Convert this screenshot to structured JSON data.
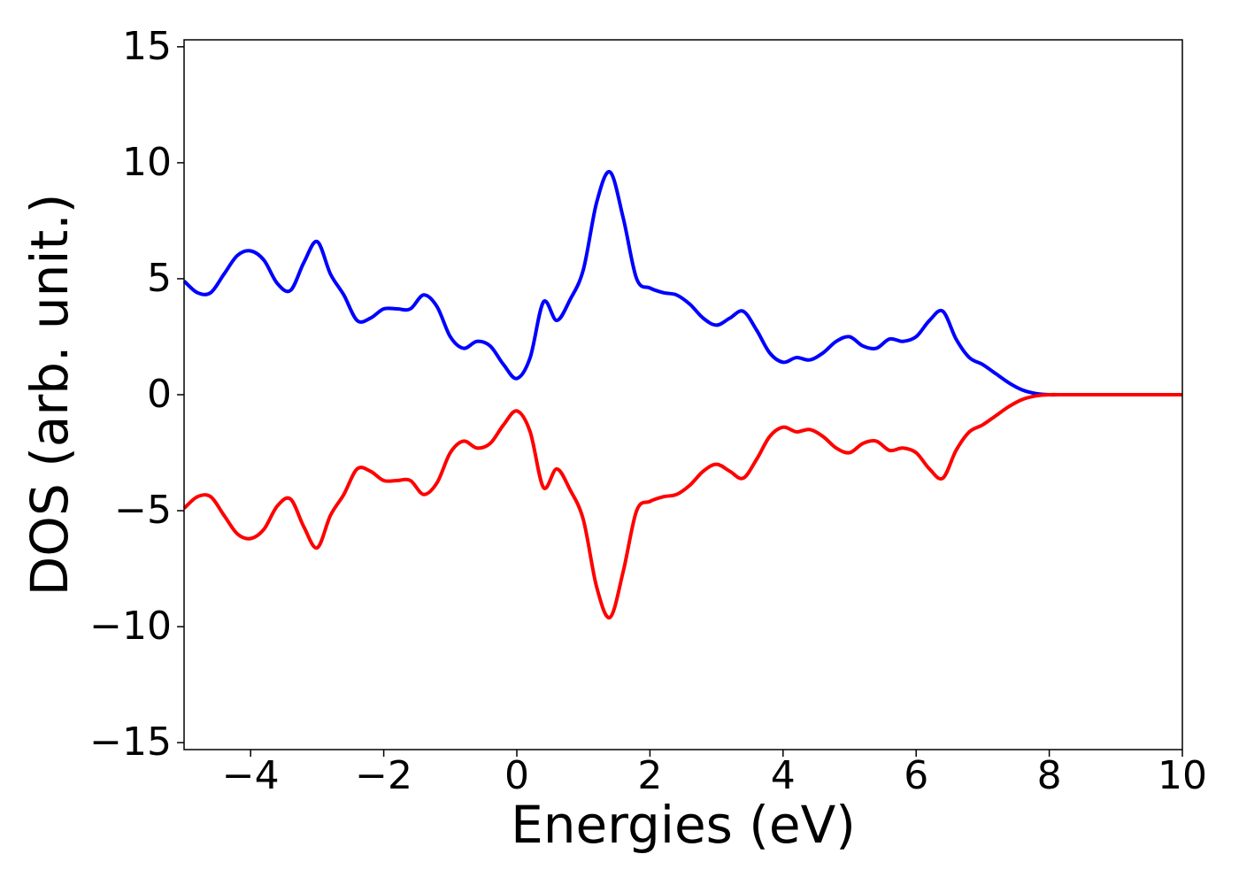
{
  "chart_data": {
    "type": "line",
    "x_label": "Energies (eV)",
    "y_label": "DOS (arb. unit.)",
    "x": [
      -5,
      -4.8,
      -4.6,
      -4.4,
      -4.2,
      -4,
      -3.8,
      -3.6,
      -3.4,
      -3.2,
      -3,
      -2.8,
      -2.6,
      -2.4,
      -2.2,
      -2,
      -1.8,
      -1.6,
      -1.4,
      -1.2,
      -1,
      -0.8,
      -0.6,
      -0.4,
      -0.2,
      0,
      0.2,
      0.4,
      0.6,
      0.8,
      1,
      1.2,
      1.4,
      1.6,
      1.8,
      2,
      2.2,
      2.4,
      2.6,
      2.8,
      3,
      3.2,
      3.4,
      3.6,
      3.8,
      4,
      4.2,
      4.4,
      4.6,
      4.8,
      5,
      5.2,
      5.4,
      5.6,
      5.8,
      6,
      6.2,
      6.4,
      6.6,
      6.8,
      7,
      7.2,
      7.4,
      7.6,
      7.8,
      8,
      8.2,
      8.4,
      8.6,
      8.8,
      9,
      9.2,
      9.4,
      9.6,
      9.8,
      10
    ],
    "series": [
      {
        "color": "#0000ff",
        "values": [
          4.9,
          4.4,
          4.4,
          5.2,
          6.0,
          6.2,
          5.8,
          4.8,
          4.5,
          5.7,
          6.6,
          5.2,
          4.3,
          3.2,
          3.3,
          3.7,
          3.7,
          3.7,
          4.3,
          3.8,
          2.5,
          2.0,
          2.3,
          2.1,
          1.3,
          0.7,
          1.6,
          4.0,
          3.2,
          4.1,
          5.4,
          8.3,
          9.6,
          7.6,
          5.0,
          4.6,
          4.4,
          4.3,
          3.9,
          3.3,
          3.0,
          3.3,
          3.6,
          2.8,
          1.8,
          1.4,
          1.6,
          1.5,
          1.8,
          2.3,
          2.5,
          2.1,
          2.0,
          2.4,
          2.3,
          2.5,
          3.2,
          3.6,
          2.4,
          1.6,
          1.3,
          0.9,
          0.5,
          0.2,
          0.05,
          0,
          0,
          0,
          0,
          0,
          0,
          0,
          0,
          0,
          0,
          0
        ]
      },
      {
        "color": "#ff0000",
        "values": [
          -4.9,
          -4.4,
          -4.4,
          -5.2,
          -6.0,
          -6.2,
          -5.8,
          -4.8,
          -4.5,
          -5.7,
          -6.6,
          -5.2,
          -4.3,
          -3.2,
          -3.3,
          -3.7,
          -3.7,
          -3.7,
          -4.3,
          -3.8,
          -2.5,
          -2.0,
          -2.3,
          -2.1,
          -1.3,
          -0.7,
          -1.6,
          -4.0,
          -3.2,
          -4.1,
          -5.4,
          -8.3,
          -9.6,
          -7.6,
          -5.0,
          -4.6,
          -4.4,
          -4.3,
          -3.9,
          -3.3,
          -3.0,
          -3.3,
          -3.6,
          -2.8,
          -1.8,
          -1.4,
          -1.6,
          -1.5,
          -1.8,
          -2.3,
          -2.5,
          -2.1,
          -2.0,
          -2.4,
          -2.3,
          -2.5,
          -3.2,
          -3.6,
          -2.4,
          -1.6,
          -1.3,
          -0.9,
          -0.5,
          -0.2,
          -0.05,
          0,
          0,
          0,
          0,
          0,
          0,
          0,
          0,
          0,
          0,
          0
        ]
      }
    ],
    "xlim": [
      -5,
      10
    ],
    "xticks": [
      {
        "value": -4,
        "label": "−4"
      },
      {
        "value": -2,
        "label": "−2"
      },
      0,
      2,
      4,
      6,
      8,
      10
    ],
    "ylim": [
      -15.3,
      15.3
    ],
    "yticks": [
      {
        "value": -15,
        "label": "−15"
      },
      {
        "value": -10,
        "label": "−10"
      },
      {
        "value": -5,
        "label": "−5"
      },
      0,
      5,
      10,
      15
    ],
    "grid": false
  }
}
